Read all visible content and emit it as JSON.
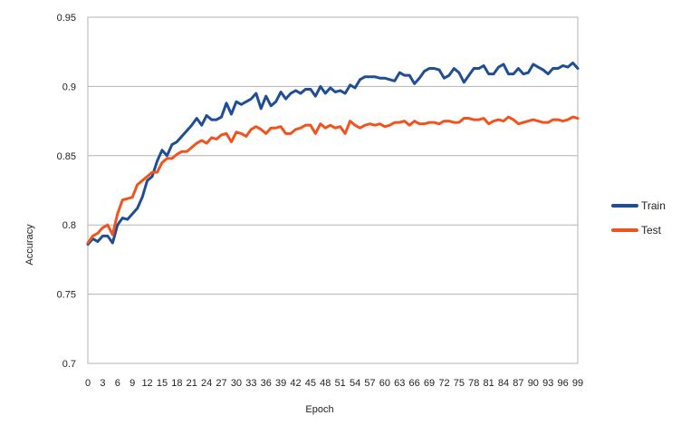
{
  "chart_data": {
    "type": "line",
    "title": "",
    "xlabel": "Epoch",
    "ylabel": "Accuracy",
    "ylim": [
      0.7,
      0.95
    ],
    "yticks": [
      "0.7",
      "0.75",
      "0.8",
      "0.85",
      "0.9",
      "0.95"
    ],
    "x": [
      0,
      1,
      2,
      3,
      4,
      5,
      6,
      7,
      8,
      9,
      10,
      11,
      12,
      13,
      14,
      15,
      16,
      17,
      18,
      19,
      20,
      21,
      22,
      23,
      24,
      25,
      26,
      27,
      28,
      29,
      30,
      31,
      32,
      33,
      34,
      35,
      36,
      37,
      38,
      39,
      40,
      41,
      42,
      43,
      44,
      45,
      46,
      47,
      48,
      49,
      50,
      51,
      52,
      53,
      54,
      55,
      56,
      57,
      58,
      59,
      60,
      61,
      62,
      63,
      64,
      65,
      66,
      67,
      68,
      69,
      70,
      71,
      72,
      73,
      74,
      75,
      76,
      77,
      78,
      79,
      80,
      81,
      82,
      83,
      84,
      85,
      86,
      87,
      88,
      89,
      90,
      91,
      92,
      93,
      94,
      95,
      96,
      97,
      98,
      99
    ],
    "xtick_labels": [
      "0",
      "3",
      "6",
      "9",
      "12",
      "15",
      "18",
      "21",
      "24",
      "27",
      "30",
      "33",
      "36",
      "39",
      "42",
      "45",
      "48",
      "51",
      "54",
      "57",
      "60",
      "63",
      "66",
      "69",
      "72",
      "75",
      "78",
      "81",
      "84",
      "87",
      "90",
      "93",
      "96",
      "99"
    ],
    "grid": true,
    "legend_position": "right",
    "series": [
      {
        "name": "Train",
        "color": "#1f4e96",
        "values": [
          0.786,
          0.79,
          0.788,
          0.792,
          0.792,
          0.787,
          0.8,
          0.805,
          0.804,
          0.808,
          0.812,
          0.82,
          0.832,
          0.835,
          0.846,
          0.854,
          0.85,
          0.858,
          0.86,
          0.864,
          0.868,
          0.872,
          0.877,
          0.872,
          0.879,
          0.876,
          0.876,
          0.878,
          0.888,
          0.88,
          0.889,
          0.887,
          0.889,
          0.891,
          0.895,
          0.884,
          0.893,
          0.886,
          0.889,
          0.896,
          0.891,
          0.895,
          0.897,
          0.895,
          0.898,
          0.898,
          0.893,
          0.9,
          0.895,
          0.899,
          0.896,
          0.897,
          0.895,
          0.901,
          0.899,
          0.905,
          0.907,
          0.907,
          0.907,
          0.906,
          0.906,
          0.905,
          0.904,
          0.91,
          0.908,
          0.908,
          0.902,
          0.906,
          0.911,
          0.913,
          0.913,
          0.912,
          0.906,
          0.908,
          0.913,
          0.91,
          0.903,
          0.908,
          0.913,
          0.913,
          0.915,
          0.909,
          0.909,
          0.914,
          0.916,
          0.909,
          0.909,
          0.913,
          0.909,
          0.91,
          0.916,
          0.914,
          0.912,
          0.909,
          0.913,
          0.913,
          0.915,
          0.914,
          0.917,
          0.913
        ]
      },
      {
        "name": "Test",
        "color": "#f0541e",
        "values": [
          0.787,
          0.792,
          0.794,
          0.798,
          0.8,
          0.793,
          0.808,
          0.818,
          0.819,
          0.82,
          0.829,
          0.832,
          0.835,
          0.838,
          0.838,
          0.845,
          0.848,
          0.848,
          0.851,
          0.853,
          0.853,
          0.856,
          0.859,
          0.861,
          0.859,
          0.863,
          0.862,
          0.865,
          0.866,
          0.86,
          0.867,
          0.866,
          0.864,
          0.869,
          0.871,
          0.869,
          0.866,
          0.87,
          0.87,
          0.871,
          0.866,
          0.866,
          0.869,
          0.87,
          0.872,
          0.872,
          0.866,
          0.873,
          0.87,
          0.872,
          0.87,
          0.871,
          0.866,
          0.875,
          0.872,
          0.87,
          0.872,
          0.873,
          0.872,
          0.873,
          0.871,
          0.872,
          0.874,
          0.874,
          0.875,
          0.872,
          0.875,
          0.873,
          0.873,
          0.874,
          0.874,
          0.873,
          0.875,
          0.875,
          0.874,
          0.874,
          0.877,
          0.877,
          0.876,
          0.876,
          0.877,
          0.873,
          0.875,
          0.876,
          0.875,
          0.878,
          0.876,
          0.873,
          0.874,
          0.875,
          0.876,
          0.875,
          0.874,
          0.874,
          0.876,
          0.876,
          0.875,
          0.876,
          0.878,
          0.877
        ]
      }
    ]
  }
}
